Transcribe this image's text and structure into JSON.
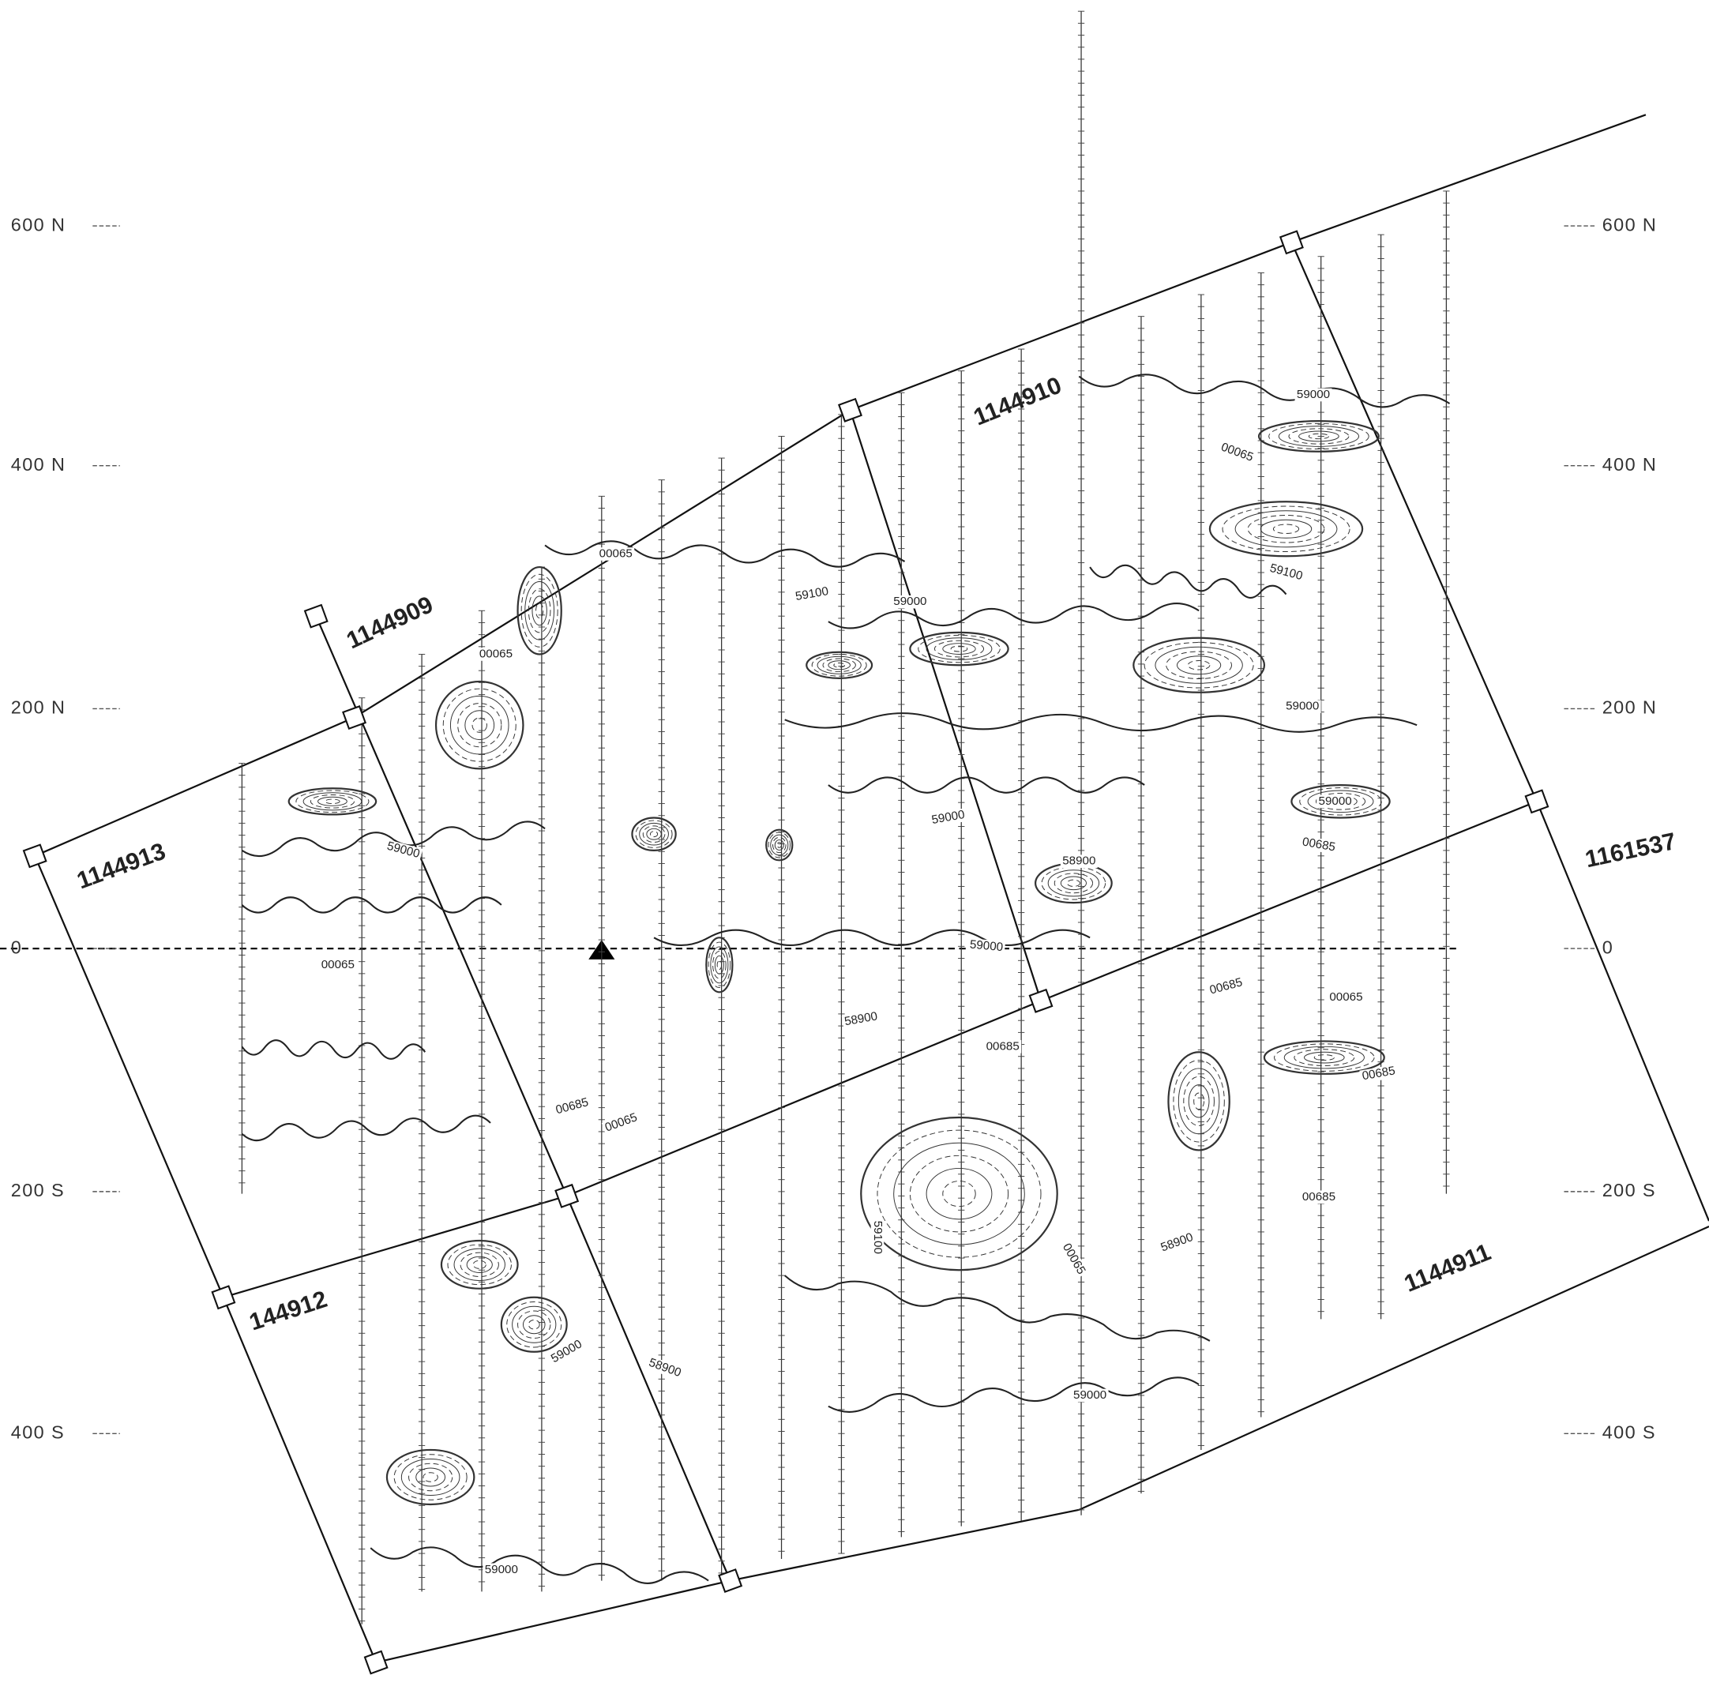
{
  "map": {
    "axis_labels_left": [
      "600 N",
      "400 N",
      "200 N",
      "0",
      "200 S",
      "400 S"
    ],
    "axis_labels_right": [
      "600 N",
      "400 N",
      "200 N",
      "0",
      "200 S",
      "400 S"
    ],
    "claim_labels": [
      "1144913",
      "1144909",
      "1144910",
      "1161537",
      "144912",
      "1144911"
    ],
    "contour_labels": [
      "59000",
      "00065",
      "59100",
      "59000",
      "59100",
      "00065",
      "00065",
      "59000",
      "59000",
      "59000",
      "00685",
      "58900",
      "59000",
      "59000",
      "00065",
      "58900",
      "00685",
      "00065",
      "00685",
      "00685",
      "00685",
      "00065",
      "00685",
      "59100",
      "00065",
      "58900",
      "59000",
      "58900",
      "59000",
      "59000"
    ]
  }
}
